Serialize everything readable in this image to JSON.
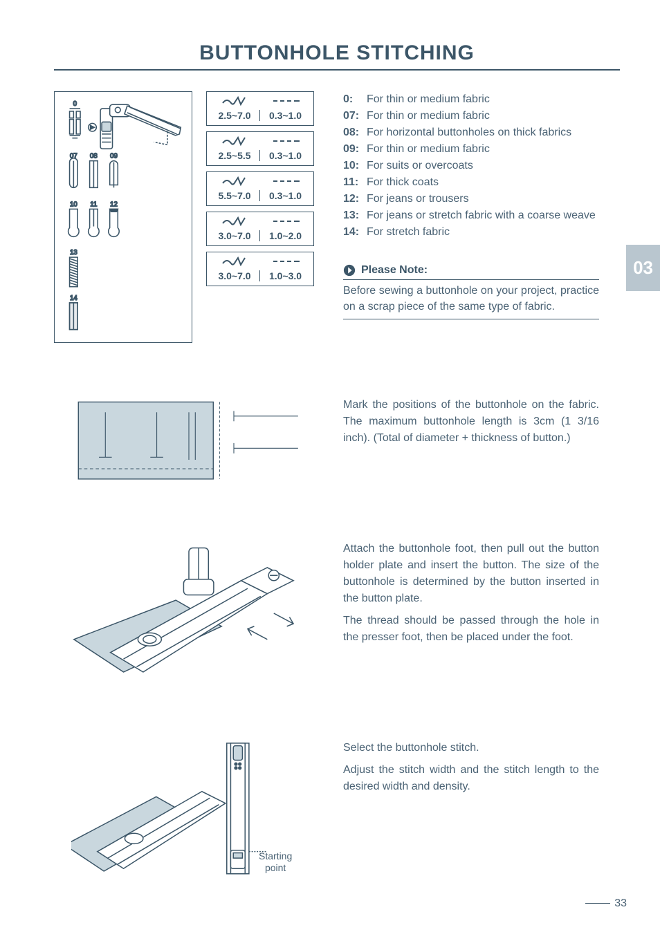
{
  "colors": {
    "text": "#4a6274",
    "accent": "#3c5668",
    "fill": "#c9d7de",
    "sidetab_bg": "#b9c6cf",
    "white": "#ffffff"
  },
  "title": "BUTTONHOLE STITCHING",
  "stitch_labels": [
    "0",
    "07",
    "08",
    "09",
    "10",
    "11",
    "12",
    "13",
    "14"
  ],
  "param_rows": [
    {
      "width": "2.5~7.0",
      "length": "0.3~1.0"
    },
    {
      "width": "2.5~5.5",
      "length": "0.3~1.0"
    },
    {
      "width": "5.5~7.0",
      "length": "0.3~1.0"
    },
    {
      "width": "3.0~7.0",
      "length": "1.0~2.0"
    },
    {
      "width": "3.0~7.0",
      "length": "1.0~3.0"
    }
  ],
  "list": [
    {
      "key": "0:",
      "val": "For thin or medium fabric"
    },
    {
      "key": "07:",
      "val": "For thin or medium fabric"
    },
    {
      "key": "08:",
      "val": "For horizontal buttonholes on thick fabrics"
    },
    {
      "key": "09:",
      "val": "For thin or medium fabric"
    },
    {
      "key": "10:",
      "val": "For suits or overcoats"
    },
    {
      "key": "11:",
      "val": "For thick coats"
    },
    {
      "key": "12:",
      "val": "For jeans or trousers"
    },
    {
      "key": "13:",
      "val": "For jeans or stretch fabric with a coarse weave"
    },
    {
      "key": "14:",
      "val": "For stretch fabric"
    }
  ],
  "note_label": "Please Note:",
  "note_body": "Before sewing a buttonhole on your project, practice on a scrap piece of the same type of fabric.",
  "side_tab": "03",
  "sec1": "Mark the positions of the buttonhole on the fabric. The maximum buttonhole length is 3cm (1 3/16 inch). (Total of diameter + thickness of button.)",
  "sec2a": "Attach the buttonhole foot, then pull out the button holder plate and insert the button. The size of the buttonhole is determined by the button inserted in the button plate.",
  "sec2b": "The thread should be passed through the hole in the presser foot, then be placed under the foot.",
  "sec3a": "Select the buttonhole stitch.",
  "sec3b": "Adjust the stitch width and the stitch length to the desired width and density.",
  "starting_point": "Starting\npoint",
  "page_number": "33"
}
